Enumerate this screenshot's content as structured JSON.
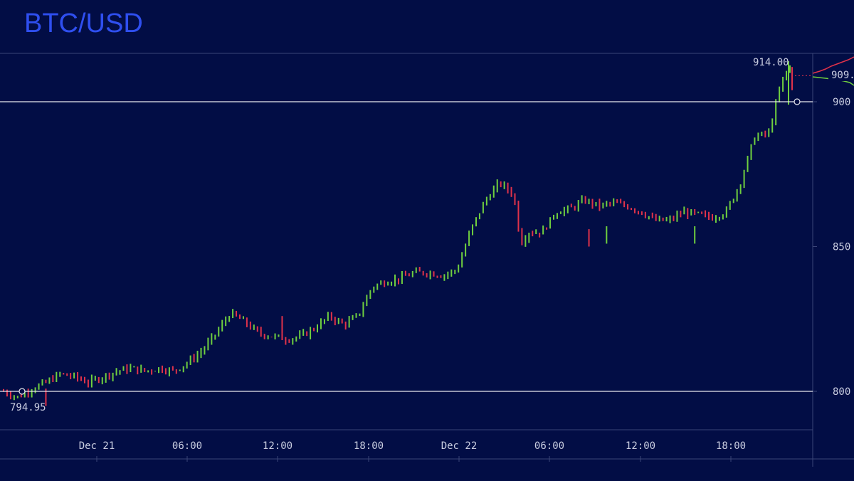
{
  "colors": {
    "background": "#020d45",
    "title": "#2f4ff0",
    "up": "#6fcf3f",
    "down": "#e0324a",
    "line": "#e8e8ee",
    "text": "#c9cde0"
  },
  "chart_data": {
    "type": "candlestick",
    "title": "BTC/USD",
    "ylim": [
      788,
      918
    ],
    "y_ticks": [
      "900",
      "850",
      "800"
    ],
    "x_ticks": [
      "Dec 21",
      "06:00",
      "12:00",
      "18:00",
      "Dec 22",
      "06:00",
      "12:00",
      "18:00"
    ],
    "horizontal_lines": [
      {
        "value": 900
      },
      {
        "value": 800
      }
    ],
    "annotations": [
      "914.00",
      "794.95",
      "909."
    ],
    "high_value": 914.0,
    "low_value": 794.95,
    "current_price_label": "909.",
    "grid": false,
    "price_path": [
      [
        0,
        800
      ],
      [
        2,
        798
      ],
      [
        4,
        801
      ],
      [
        6,
        803
      ],
      [
        8,
        806
      ],
      [
        10,
        805
      ],
      [
        12,
        803
      ],
      [
        14,
        805
      ],
      [
        16,
        807
      ],
      [
        18,
        808
      ],
      [
        20,
        807
      ],
      [
        22,
        808
      ],
      [
        24,
        807
      ],
      [
        26,
        810
      ],
      [
        28,
        814
      ],
      [
        30,
        820
      ],
      [
        32,
        827
      ],
      [
        34,
        824
      ],
      [
        36,
        820
      ],
      [
        38,
        819
      ],
      [
        40,
        818
      ],
      [
        42,
        819
      ],
      [
        44,
        822
      ],
      [
        46,
        826
      ],
      [
        48,
        823
      ],
      [
        50,
        826
      ],
      [
        52,
        836
      ],
      [
        54,
        838
      ],
      [
        56,
        839
      ],
      [
        58,
        841
      ],
      [
        60,
        841
      ],
      [
        62,
        840
      ],
      [
        64,
        842
      ],
      [
        66,
        856
      ],
      [
        68,
        866
      ],
      [
        70,
        872
      ],
      [
        72,
        868
      ],
      [
        73,
        851
      ],
      [
        74,
        855
      ],
      [
        76,
        855
      ],
      [
        78,
        862
      ],
      [
        80,
        863
      ],
      [
        82,
        866
      ],
      [
        84,
        864
      ],
      [
        86,
        865
      ],
      [
        88,
        864
      ],
      [
        90,
        862
      ],
      [
        92,
        859
      ],
      [
        94,
        859
      ],
      [
        96,
        862
      ],
      [
        98,
        861
      ],
      [
        100,
        860
      ],
      [
        102,
        862
      ],
      [
        104,
        872
      ],
      [
        106,
        888
      ],
      [
        108,
        889
      ],
      [
        109,
        899
      ],
      [
        110,
        908
      ],
      [
        111,
        912
      ]
    ]
  }
}
